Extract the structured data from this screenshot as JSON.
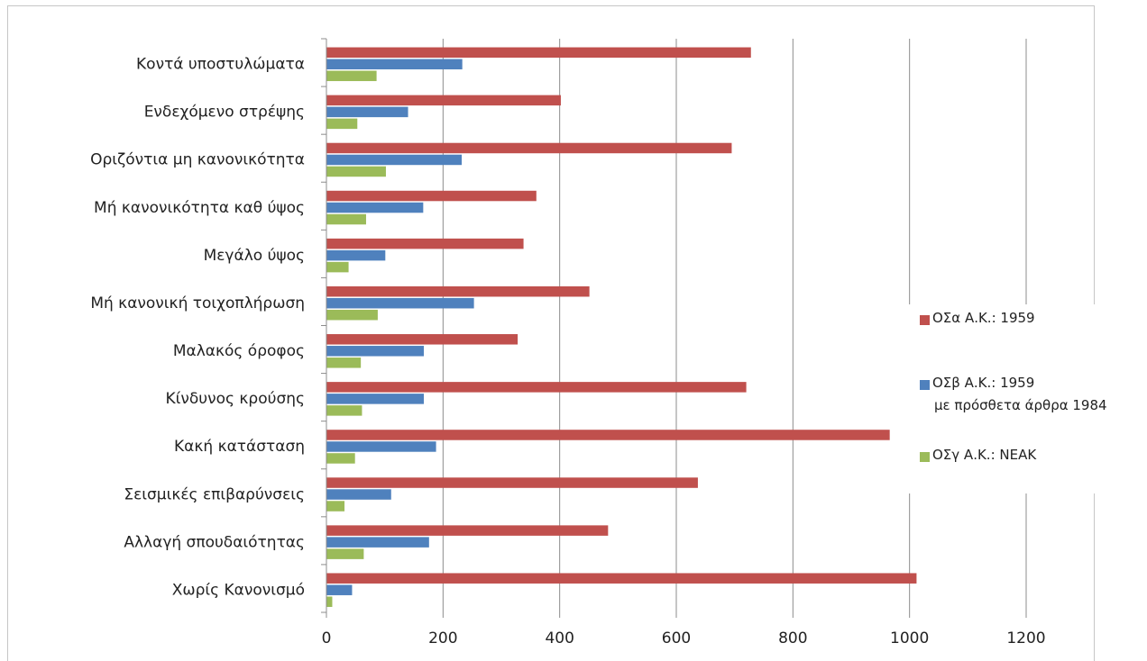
{
  "chart_data": {
    "type": "bar",
    "orientation": "horizontal",
    "categories": [
      "Κοντά υποστυλώματα",
      "Ενδεχόμενο στρέψης",
      "Οριζόντια μη κανονικότητα",
      "Μή κανονικότητα καθ ύψος",
      "Μεγάλο ύψος",
      "Μή κανονική τοιχοπλήρωση",
      "Μαλακός όροφος",
      "Κίνδυνος κρούσης",
      "Κακή κατάσταση",
      "Σεισμικές επιβαρύνσεις",
      "Αλλαγή σπουδαιότητας",
      "Χωρίς Κανονισμό"
    ],
    "series": [
      {
        "name": "ΟΣα   Α.Κ.: 1959",
        "color": "#c0504d",
        "values": [
          728,
          402,
          695,
          360,
          338,
          451,
          328,
          720,
          966,
          637,
          483,
          1012
        ]
      },
      {
        "name": "ΟΣβ   Α.Κ.: 1959",
        "note": "με πρόσθετα άρθρα 1984",
        "color": "#4f81bd",
        "values": [
          233,
          140,
          232,
          166,
          101,
          253,
          167,
          167,
          188,
          111,
          176,
          44
        ]
      },
      {
        "name": "ΟΣγ    Α.Κ.: ΝΕΑΚ",
        "color": "#9bbb59",
        "values": [
          86,
          53,
          102,
          68,
          38,
          88,
          59,
          61,
          49,
          31,
          64,
          10
        ]
      }
    ],
    "xlim": [
      0,
      1200
    ],
    "xticks": [
      0,
      200,
      400,
      600,
      800,
      1000,
      1200
    ],
    "xlabel": "",
    "ylabel": "",
    "title": "",
    "grid": "vertical",
    "legend_position": "right"
  }
}
